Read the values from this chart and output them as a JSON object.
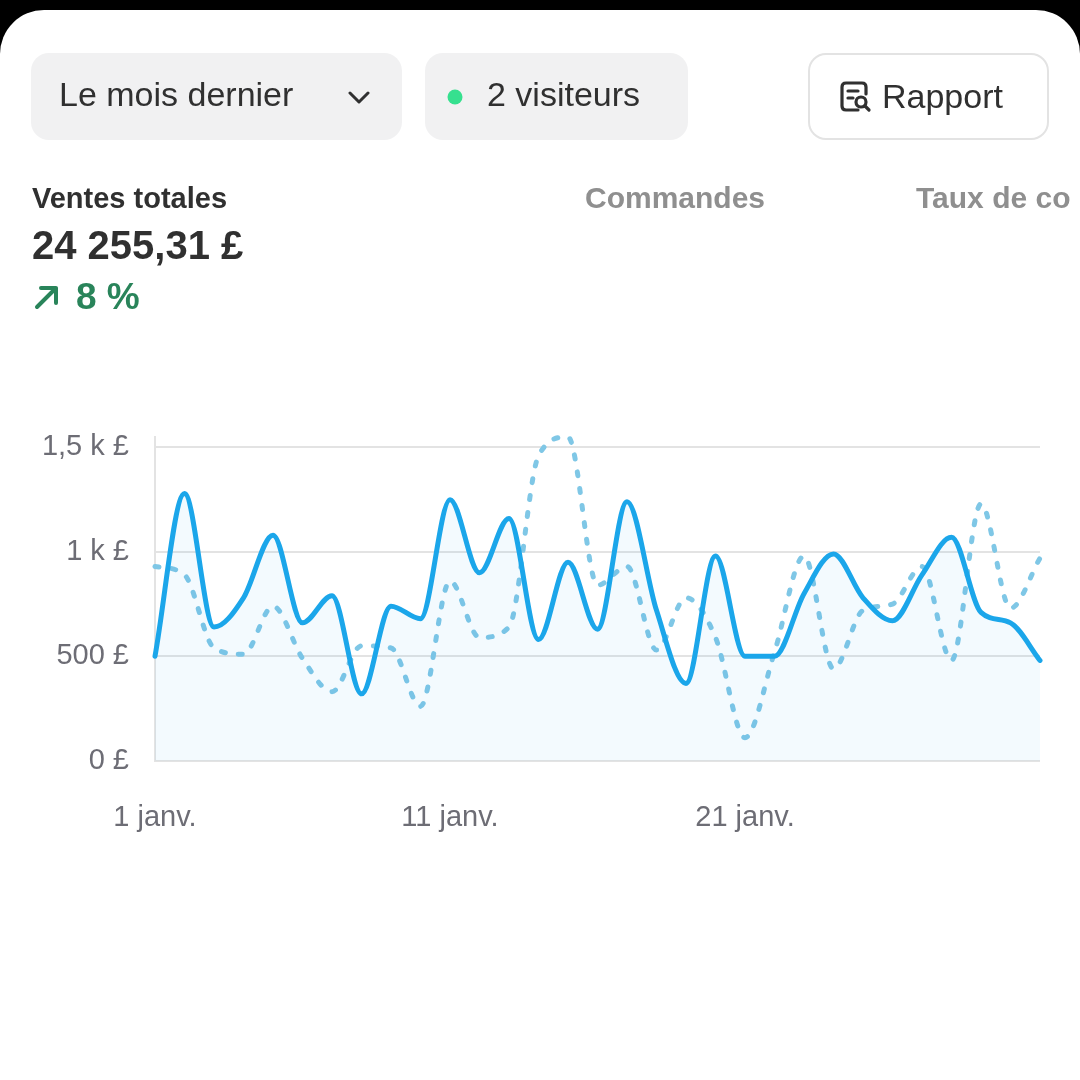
{
  "chart_data": {
    "type": "line",
    "title": "Ventes totales",
    "subtitle": "24 255,31 £",
    "annotations": [
      "8 %",
      "Le mois dernier",
      "2 visiteurs",
      "Rapport",
      "Commandes",
      "Taux de co"
    ],
    "categories": [
      "1 janv.",
      null,
      null,
      null,
      null,
      null,
      null,
      null,
      null,
      null,
      "11 janv.",
      null,
      null,
      null,
      null,
      null,
      null,
      null,
      null,
      null,
      "21 janv.",
      null,
      null,
      null,
      null,
      null,
      null,
      null,
      null,
      null,
      null
    ],
    "series": [
      {
        "type": "area",
        "color": "#1ba6ea",
        "values": [
          500,
          1280,
          640,
          780,
          1080,
          660,
          790,
          320,
          740,
          680,
          1250,
          900,
          1160,
          580,
          950,
          630,
          1240,
          720,
          370,
          980,
          500,
          500,
          800,
          990,
          780,
          670,
          890,
          1070,
          710,
          660,
          480
        ]
      },
      {
        "color": "#7fc7e6",
        "line_style": "dashed",
        "values": [
          930,
          890,
          540,
          510,
          740,
          490,
          330,
          550,
          540,
          260,
          860,
          590,
          640,
          1460,
          1550,
          840,
          930,
          530,
          780,
          590,
          110,
          520,
          980,
          440,
          720,
          750,
          930,
          480,
          1230,
          730,
          970
        ]
      }
    ],
    "ylim": [
      0,
      1550
    ],
    "yticks": [
      {
        "value": 0,
        "label": "0 £"
      },
      {
        "value": 500,
        "label": "500 £"
      },
      {
        "value": 1000,
        "label": "1 k £"
      },
      {
        "value": 1500,
        "label": "1,5 k £"
      }
    ],
    "grid": "y",
    "marker": "none"
  }
}
